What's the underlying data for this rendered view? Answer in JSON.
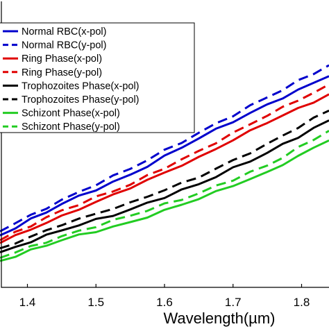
{
  "chart_data": {
    "type": "line",
    "xlabel": "Wavelength(µm)",
    "ylabel": "",
    "xlim": [
      1.36,
      1.84
    ],
    "ylim": [
      0,
      1
    ],
    "xticks": [
      1.4,
      1.5,
      1.6,
      1.7,
      1.8
    ],
    "xtick_labels": [
      "1.4",
      "1.5",
      "1.6",
      "1.7",
      "1.8"
    ],
    "grid": false,
    "legend_position": "top-left",
    "series": [
      {
        "name": "Normal RBC(x-pol)",
        "color": "#0000cc",
        "dash": "solid",
        "x": [
          1.36,
          1.45,
          1.55,
          1.65,
          1.75,
          1.84
        ],
        "y": [
          0.181,
          0.29,
          0.392,
          0.518,
          0.637,
          0.735
        ]
      },
      {
        "name": "Normal RBC(y-pol)",
        "color": "#0000cc",
        "dash": "dashed",
        "x": [
          1.36,
          1.45,
          1.55,
          1.65,
          1.75,
          1.84
        ],
        "y": [
          0.195,
          0.305,
          0.412,
          0.538,
          0.661,
          0.773
        ]
      },
      {
        "name": "Ring Phase(x-pol)",
        "color": "#e00000",
        "dash": "solid",
        "x": [
          1.36,
          1.45,
          1.55,
          1.65,
          1.75,
          1.84
        ],
        "y": [
          0.154,
          0.25,
          0.344,
          0.454,
          0.572,
          0.672
        ]
      },
      {
        "name": "Ring Phase(y-pol)",
        "color": "#e00000",
        "dash": "dashed",
        "x": [
          1.36,
          1.45,
          1.55,
          1.65,
          1.75,
          1.84
        ],
        "y": [
          0.164,
          0.268,
          0.357,
          0.475,
          0.597,
          0.706
        ]
      },
      {
        "name": "Trophozoites Phase(x-pol)",
        "color": "#000000",
        "dash": "solid",
        "x": [
          1.36,
          1.45,
          1.55,
          1.65,
          1.75,
          1.84
        ],
        "y": [
          0.122,
          0.198,
          0.271,
          0.359,
          0.468,
          0.581
        ]
      },
      {
        "name": "Trophozoites Phase(y-pol)",
        "color": "#000000",
        "dash": "dashed",
        "x": [
          1.36,
          1.45,
          1.55,
          1.65,
          1.75,
          1.84
        ],
        "y": [
          0.136,
          0.216,
          0.296,
          0.382,
          0.5,
          0.615
        ]
      },
      {
        "name": "Schizont Phase(x-pol)",
        "color": "#22cc22",
        "dash": "solid",
        "x": [
          1.36,
          1.45,
          1.55,
          1.65,
          1.75,
          1.84
        ],
        "y": [
          0.092,
          0.164,
          0.227,
          0.307,
          0.402,
          0.511
        ]
      },
      {
        "name": "Schizont Phase(y-pol)",
        "color": "#22cc22",
        "dash": "dashed",
        "x": [
          1.36,
          1.45,
          1.55,
          1.65,
          1.75,
          1.84
        ],
        "y": [
          0.103,
          0.178,
          0.249,
          0.327,
          0.424,
          0.545
        ]
      }
    ]
  }
}
